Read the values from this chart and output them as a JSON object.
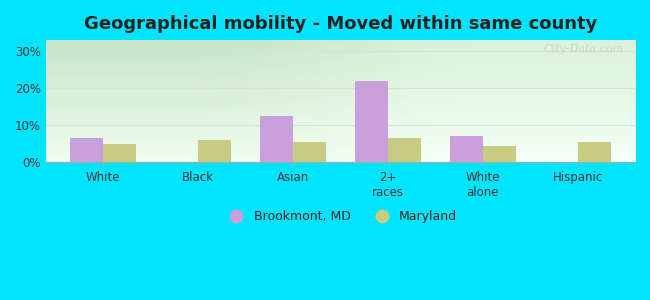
{
  "title": "Geographical mobility - Moved within same county",
  "categories": [
    "White",
    "Black",
    "Asian",
    "2+\nraces",
    "White\nalone",
    "Hispanic"
  ],
  "brookmont_values": [
    6.5,
    0,
    12.5,
    22.0,
    7.0,
    0
  ],
  "maryland_values": [
    5.0,
    6.0,
    5.5,
    6.5,
    4.5,
    5.5
  ],
  "brookmont_color": "#c9a0dc",
  "maryland_color": "#c8cc82",
  "ylim": [
    0,
    33
  ],
  "yticks": [
    0,
    10,
    20,
    30
  ],
  "ytick_labels": [
    "0%",
    "10%",
    "20%",
    "30%"
  ],
  "bar_width": 0.35,
  "background_outer": "#00e5ff",
  "legend_brookmont": "Brookmont, MD",
  "legend_maryland": "Maryland",
  "title_fontsize": 13,
  "title_color": "#222222",
  "watermark": "City-Data.com",
  "grid_color": "#dddddd",
  "bg_gradient_top": "#c8e6c0",
  "bg_gradient_bottom": "#f0fff0",
  "bg_gradient_right": "#b0e0e8"
}
